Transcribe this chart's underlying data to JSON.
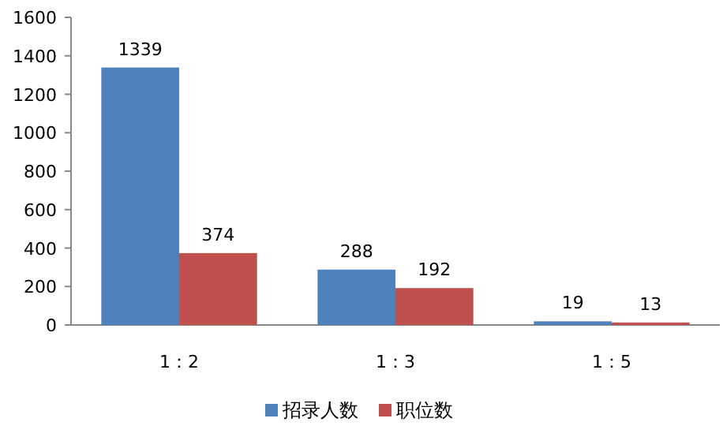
{
  "chart_data": {
    "type": "bar",
    "categories": [
      "1：2",
      "1：3",
      "1：5"
    ],
    "series": [
      {
        "name": "招录人数",
        "color": "#4f81bd",
        "values": [
          1339,
          288,
          19
        ]
      },
      {
        "name": "职位数",
        "color": "#c0504d",
        "values": [
          374,
          192,
          13
        ]
      }
    ],
    "ylim": [
      0,
      1600
    ],
    "yticks": [
      0,
      200,
      400,
      600,
      800,
      1000,
      1200,
      1400,
      1600
    ],
    "data_labels": true,
    "legend": "bottom",
    "grid": false
  }
}
